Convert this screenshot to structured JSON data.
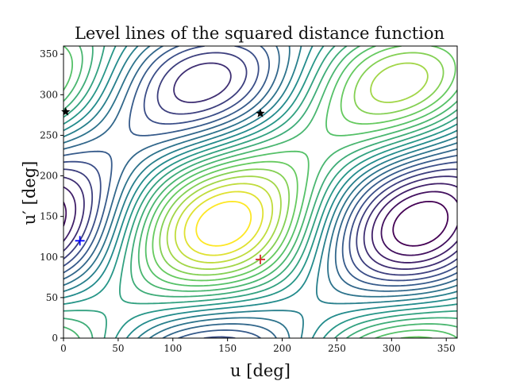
{
  "chart_data": {
    "type": "contour",
    "title": "Level lines of the squared distance function",
    "xlabel": "u [deg]",
    "ylabel": "u′ [deg]",
    "xlim": [
      0,
      360
    ],
    "ylim": [
      0,
      360
    ],
    "x_ticks": [
      "0",
      "50",
      "100",
      "150",
      "200",
      "250",
      "300",
      "350"
    ],
    "y_ticks": [
      "0",
      "50",
      "100",
      "150",
      "200",
      "250",
      "300",
      "350"
    ],
    "grid": false,
    "colormap": "viridis",
    "colormap_colors": [
      "#440154",
      "#3b528b",
      "#21918c",
      "#5ec962",
      "#fde725"
    ],
    "contour_level_count": 22,
    "markers": [
      {
        "label": "",
        "x": 180,
        "y": 97,
        "symbol": "+",
        "color": "#d62728"
      },
      {
        "label": "",
        "x": 15,
        "y": 120,
        "symbol": "+",
        "color": "#0000ff"
      },
      {
        "label": "",
        "x": 180,
        "y": 277,
        "symbol": "star",
        "color": "#000000"
      },
      {
        "label": "",
        "x": 2,
        "y": 279,
        "symbol": "star",
        "color": "#000000"
      }
    ]
  }
}
